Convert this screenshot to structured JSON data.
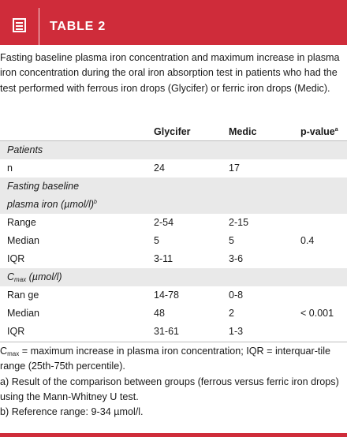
{
  "header": {
    "title": "TABLE 2"
  },
  "caption": "Fasting baseline plasma iron concentration and maximum increase in plasma iron concentration during the oral iron absorption test in patients who had the test performed with ferrous iron drops (Glycifer) or ferric iron drops (Medic).",
  "table": {
    "columns": [
      "",
      "Glycifer",
      "Medic",
      "p-value"
    ],
    "pvalue_mark": "a",
    "rows": [
      {
        "label": "Patients",
        "section": true
      },
      {
        "label": "n",
        "glycifer": "24",
        "medic": "17",
        "p": ""
      },
      {
        "label": "Fasting baseline",
        "section": true
      },
      {
        "label": "plasma iron (µmol/l)",
        "mark": "b",
        "section": true
      },
      {
        "label": "Range",
        "glycifer": "2-54",
        "medic": "2-15",
        "p": ""
      },
      {
        "label": "Median",
        "glycifer": "5",
        "medic": "5",
        "p": "0.4"
      },
      {
        "label": "IQR",
        "glycifer": "3-11",
        "medic": "3-6",
        "p": ""
      },
      {
        "label_main": "C",
        "label_sub": "max",
        "label_rest": " (µmol/l)",
        "section": true
      },
      {
        "label": "Ran ge",
        "glycifer": "14-78",
        "medic": "0-8",
        "p": ""
      },
      {
        "label": "Median",
        "glycifer": "48",
        "medic": "2",
        "p": "< 0.001"
      },
      {
        "label": "IQR",
        "glycifer": "31-61",
        "medic": "1-3",
        "p": ""
      }
    ]
  },
  "footnotes": {
    "cmax_main": "C",
    "cmax_sub": "max",
    "cmax_text": " = maximum increase in plasma iron concentration; IQR = interquar-tile range (25th-75th percentile).",
    "a": "a) Result of the comparison between groups (ferrous versus ferric iron drops) using the Mann-Whitney U test.",
    "b": "b) Reference range: 9-34 µmol/l."
  },
  "colors": {
    "accent": "#cf2c3a",
    "row_shade": "#e9e9e9"
  }
}
